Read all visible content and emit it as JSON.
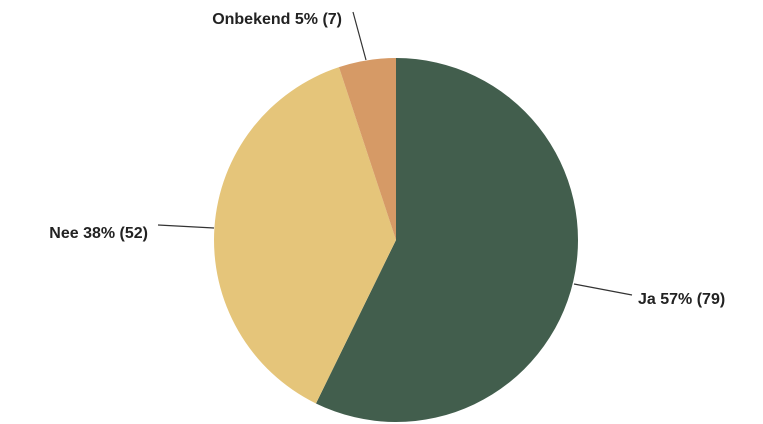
{
  "chart_data": {
    "type": "pie",
    "title": "",
    "slices": [
      {
        "label": "Ja",
        "percent": 57,
        "count": 79,
        "text": "Ja 57% (79)",
        "color": "#425e4d"
      },
      {
        "label": "Nee",
        "percent": 38,
        "count": 52,
        "text": "Nee 38% (52)",
        "color": "#e5c57a"
      },
      {
        "label": "Onbekend",
        "percent": 5,
        "count": 7,
        "text": "Onbekend 5% (7)",
        "color": "#d69a66"
      }
    ],
    "start": "12 o'clock",
    "direction": "clockwise",
    "legend": "none",
    "labels": "outside with leader lines"
  }
}
